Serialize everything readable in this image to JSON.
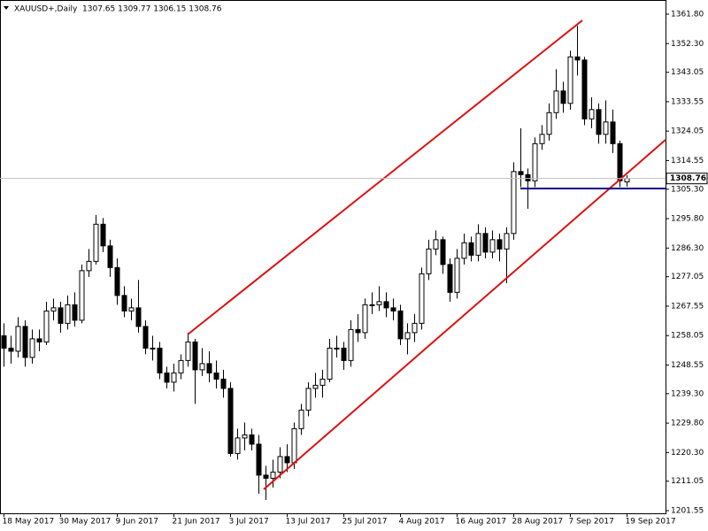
{
  "chart_data": {
    "type": "candlestick",
    "title": "XAUUSD+,Daily  1307.65 1309.77 1306.15 1308.76",
    "categories": [
      "18 May 2017",
      null,
      null,
      null,
      null,
      null,
      null,
      null,
      "30 May 2017",
      null,
      null,
      null,
      null,
      null,
      null,
      null,
      "9 Jun 2017",
      null,
      null,
      null,
      null,
      null,
      null,
      null,
      "21 Jun 2017",
      null,
      null,
      null,
      null,
      null,
      null,
      null,
      "3 Jul 2017",
      null,
      null,
      null,
      null,
      null,
      null,
      null,
      "13 Jul 2017",
      null,
      null,
      null,
      null,
      null,
      null,
      null,
      "25 Jul 2017",
      null,
      null,
      null,
      null,
      null,
      null,
      null,
      "4 Aug 2017",
      null,
      null,
      null,
      null,
      null,
      null,
      null,
      "16 Aug 2017",
      null,
      null,
      null,
      null,
      null,
      null,
      null,
      "28 Aug 2017",
      null,
      null,
      null,
      null,
      null,
      null,
      null,
      "7 Sep 2017",
      null,
      null,
      null,
      null,
      null,
      null,
      null,
      "19 Sep 2017"
    ],
    "open": [
      1258,
      1254,
      1253,
      1261,
      1251,
      1257,
      1256,
      1266,
      1267,
      1262,
      1268,
      1263,
      1279,
      1282,
      1294,
      1287,
      1280,
      1271,
      1266,
      1267,
      1261,
      1254,
      1254,
      1246,
      1243,
      1246,
      1250,
      1256,
      1247,
      1249,
      1246,
      1244,
      1241,
      1220,
      1225,
      1226,
      1223,
      1213,
      1212,
      1214,
      1219,
      1217,
      1228,
      1234,
      1241,
      1242,
      1244,
      1254,
      1254,
      1250,
      1260,
      1259,
      1268,
      1268,
      1269,
      1267,
      1266,
      1257,
      1259,
      1262,
      1278,
      1286,
      1289,
      1281,
      1272,
      1283,
      1288,
      1284,
      1291,
      1285,
      1289,
      1286,
      1291,
      1311,
      1310,
      1308,
      1320,
      1323,
      1330,
      1337,
      1333,
      1348,
      1347,
      1328,
      1331,
      1323,
      1327,
      1320,
      1307.65
    ],
    "high": [
      1262,
      1258,
      1264,
      1263,
      1260,
      1260,
      1269,
      1270,
      1269,
      1271,
      1272,
      1281,
      1286,
      1297,
      1296,
      1289,
      1283,
      1274,
      1270,
      1276,
      1263,
      1258,
      1256,
      1248,
      1249,
      1252,
      1259,
      1257,
      1254,
      1253,
      1250,
      1247,
      1243,
      1228,
      1230,
      1228,
      1226,
      1216,
      1218,
      1222,
      1223,
      1230,
      1236,
      1243,
      1246,
      1247,
      1257,
      1258,
      1256,
      1263,
      1265,
      1270,
      1272,
      1274,
      1272,
      1270,
      1268,
      1262,
      1265,
      1280,
      1289,
      1292,
      1290,
      1283,
      1286,
      1291,
      1290,
      1294,
      1293,
      1292,
      1291,
      1293,
      1314,
      1325,
      1312,
      1322,
      1326,
      1333,
      1344,
      1340,
      1350,
      1358,
      1348,
      1335,
      1333,
      1334,
      1331,
      1321,
      1309.77
    ],
    "low": [
      1248,
      1249,
      1251,
      1248,
      1249,
      1253,
      1255,
      1263,
      1259,
      1260,
      1261,
      1262,
      1277,
      1281,
      1285,
      1277,
      1268,
      1264,
      1263,
      1259,
      1252,
      1250,
      1244,
      1241,
      1240,
      1244,
      1248,
      1236,
      1245,
      1243,
      1241,
      1238,
      1219,
      1218,
      1221,
      1221,
      1207,
      1205,
      1209,
      1212,
      1214,
      1215,
      1226,
      1232,
      1238,
      1238,
      1243,
      1251,
      1247,
      1248,
      1256,
      1257,
      1265,
      1266,
      1264,
      1263,
      1255,
      1252,
      1256,
      1260,
      1276,
      1284,
      1278,
      1269,
      1270,
      1281,
      1282,
      1282,
      1283,
      1283,
      1282,
      1275,
      1289,
      1306,
      1299,
      1306,
      1318,
      1321,
      1328,
      1330,
      1331,
      1342,
      1326,
      1325,
      1320,
      1320,
      1317,
      1306,
      1306.15
    ],
    "close": [
      1254,
      1253,
      1261,
      1251,
      1257,
      1256,
      1266,
      1267,
      1262,
      1268,
      1263,
      1279,
      1282,
      1294,
      1287,
      1280,
      1271,
      1266,
      1267,
      1261,
      1254,
      1254,
      1246,
      1243,
      1246,
      1250,
      1256,
      1247,
      1249,
      1246,
      1244,
      1241,
      1220,
      1225,
      1226,
      1223,
      1213,
      1212,
      1214,
      1219,
      1217,
      1228,
      1234,
      1241,
      1242,
      1244,
      1254,
      1254,
      1250,
      1260,
      1259,
      1268,
      1268,
      1269,
      1267,
      1266,
      1257,
      1259,
      1262,
      1278,
      1286,
      1289,
      1281,
      1272,
      1283,
      1288,
      1284,
      1291,
      1285,
      1289,
      1286,
      1291,
      1311,
      1310,
      1308,
      1320,
      1323,
      1330,
      1337,
      1333,
      1348,
      1347,
      1328,
      1331,
      1323,
      1327,
      1320,
      1308,
      1308.76
    ],
    "up_color": "#ffffff",
    "down_color": "#000000",
    "ylim": [
      1200.69,
      1366.37
    ],
    "yticks": [
      {
        "value": 1361.8,
        "label": "1361.80"
      },
      {
        "value": 1352.3,
        "label": "1352.30"
      },
      {
        "value": 1343.05,
        "label": "1343.05"
      },
      {
        "value": 1333.55,
        "label": "1333.55"
      },
      {
        "value": 1324.05,
        "label": "1324.05"
      },
      {
        "value": 1314.55,
        "label": "1314.55"
      },
      {
        "value": 1305.3,
        "label": "1305.30"
      },
      {
        "value": 1295.8,
        "label": "1295.80"
      },
      {
        "value": 1286.3,
        "label": "1286.30"
      },
      {
        "value": 1277.05,
        "label": "1277.05"
      },
      {
        "value": 1267.55,
        "label": "1267.55"
      },
      {
        "value": 1258.05,
        "label": "1258.05"
      },
      {
        "value": 1248.55,
        "label": "1248.55"
      },
      {
        "value": 1239.3,
        "label": "1239.30"
      },
      {
        "value": 1229.8,
        "label": "1229.80"
      },
      {
        "value": 1220.3,
        "label": "1220.30"
      },
      {
        "value": 1211.05,
        "label": "1211.05"
      },
      {
        "value": 1201.55,
        "label": "1201.55"
      }
    ],
    "current_price": {
      "value": 1308.76,
      "label": "1308.76"
    }
  }
}
